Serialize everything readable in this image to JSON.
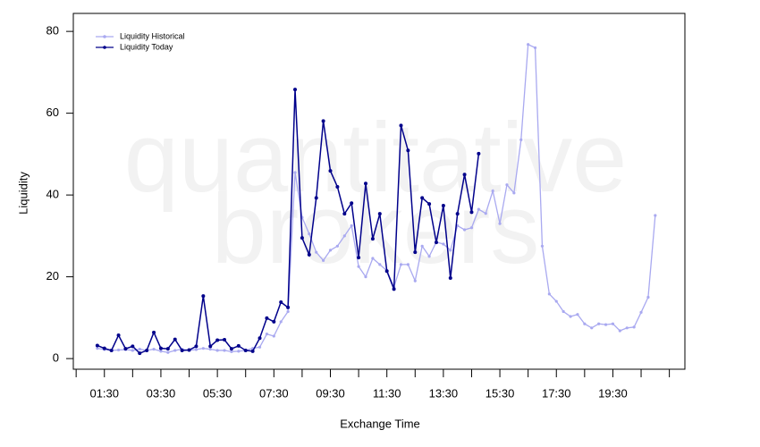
{
  "chart_data": {
    "type": "line",
    "watermark": [
      "quantitative",
      "brokers"
    ],
    "xlabel": "Exchange Time",
    "ylabel": "Liquidity",
    "xlim": [
      0.4,
      22.05
    ],
    "ylim": [
      -2.6,
      84.4
    ],
    "xticks": [
      {
        "value": 1.5,
        "label": "01:30"
      },
      {
        "value": 3.5,
        "label": "03:30"
      },
      {
        "value": 5.5,
        "label": "05:30"
      },
      {
        "value": 7.5,
        "label": "07:30"
      },
      {
        "value": 9.5,
        "label": "09:30"
      },
      {
        "value": 11.5,
        "label": "11:30"
      },
      {
        "value": 13.5,
        "label": "13:30"
      },
      {
        "value": 15.5,
        "label": "15:30"
      },
      {
        "value": 17.5,
        "label": "17:30"
      },
      {
        "value": 19.5,
        "label": "19:30"
      }
    ],
    "xminorticks": [
      0.5,
      2.5,
      4.5,
      6.5,
      8.5,
      10.5,
      12.5,
      14.5,
      16.5,
      18.5,
      20.5,
      21.5
    ],
    "yticks": [
      0,
      20,
      40,
      60,
      80
    ],
    "legend": "upper left",
    "series": [
      {
        "name": "Liquidity Historical",
        "color": "#a9a9f0",
        "x": [
          1.25,
          1.5,
          1.75,
          2,
          2.25,
          2.5,
          2.75,
          3,
          3.25,
          3.5,
          3.75,
          4,
          4.25,
          4.5,
          4.75,
          5,
          5.25,
          5.5,
          5.75,
          6,
          6.25,
          6.5,
          6.75,
          7,
          7.25,
          7.5,
          7.75,
          8,
          8.25,
          8.5,
          8.75,
          9,
          9.25,
          9.5,
          9.75,
          10,
          10.25,
          10.5,
          10.75,
          11,
          11.25,
          11.5,
          11.75,
          12,
          12.25,
          12.5,
          12.75,
          13,
          13.25,
          13.5,
          13.75,
          14,
          14.25,
          14.5,
          14.75,
          15,
          15.25,
          15.5,
          15.75,
          16,
          16.25,
          16.5,
          16.75,
          17,
          17.25,
          17.5,
          17.75,
          18,
          18.25,
          18.5,
          18.75,
          19,
          19.25,
          19.5,
          19.75,
          20,
          20.25,
          20.5,
          20.75,
          21
        ],
        "values": [
          2.5,
          2.2,
          2.0,
          2.1,
          2.2,
          2.0,
          2.3,
          2.0,
          2.3,
          1.8,
          1.5,
          2.0,
          2.3,
          2.0,
          2.2,
          2.5,
          2.3,
          2.0,
          2.0,
          1.7,
          1.8,
          2.0,
          2.5,
          2.8,
          6.0,
          5.5,
          9.0,
          11.5,
          45.5,
          34.5,
          30.5,
          26.0,
          24.0,
          26.5,
          27.5,
          30.0,
          32.5,
          22.5,
          20.0,
          24.5,
          23.0,
          21.5,
          17.5,
          23.0,
          23.0,
          19.0,
          27.5,
          25.0,
          28.5,
          28.0,
          26.5,
          32.5,
          31.5,
          32.0,
          36.5,
          35.5,
          41.0,
          33.0,
          42.5,
          40.5,
          53.5,
          76.8,
          76.0,
          27.5,
          15.8,
          14.0,
          11.5,
          10.3,
          10.8,
          8.5,
          7.5,
          8.5,
          8.3,
          8.5,
          6.8,
          7.5,
          7.7,
          11.3,
          15.0,
          35.0
        ]
      },
      {
        "name": "Liquidity Today",
        "color": "#00008b",
        "x": [
          1.25,
          1.5,
          1.75,
          2,
          2.25,
          2.5,
          2.75,
          3,
          3.25,
          3.5,
          3.75,
          4,
          4.25,
          4.5,
          4.75,
          5,
          5.25,
          5.5,
          5.75,
          6,
          6.25,
          6.5,
          6.75,
          7,
          7.25,
          7.5,
          7.75,
          8,
          8.25,
          8.5,
          8.75,
          9,
          9.25,
          9.5,
          9.75,
          10,
          10.25,
          10.5,
          10.75,
          11,
          11.25,
          11.5,
          11.75,
          12,
          12.25,
          12.5,
          12.75,
          13,
          13.25,
          13.5,
          13.75,
          14,
          14.25,
          14.5,
          14.75
        ],
        "values": [
          3.2,
          2.5,
          2.0,
          5.7,
          2.4,
          3.0,
          1.3,
          2.0,
          6.4,
          2.5,
          2.4,
          4.7,
          2.0,
          2.1,
          3.0,
          15.3,
          3.0,
          4.5,
          4.6,
          2.4,
          3.1,
          2.0,
          1.8,
          5.0,
          9.9,
          9.0,
          13.8,
          12.5,
          65.8,
          29.5,
          25.4,
          39.3,
          58.1,
          45.9,
          42.0,
          35.4,
          38.0,
          24.7,
          42.8,
          29.3,
          35.4,
          21.4,
          17.0,
          57.0,
          50.9,
          26.0,
          39.3,
          37.8,
          28.4,
          37.4,
          19.7,
          35.4,
          45.0,
          35.8,
          50.1
        ]
      }
    ]
  }
}
